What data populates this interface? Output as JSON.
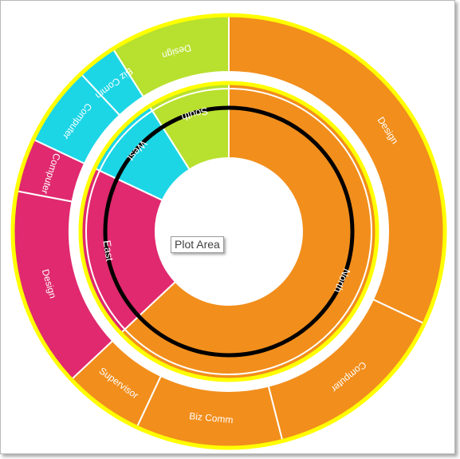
{
  "colors": {
    "North": "#f28e1c",
    "East": "#e0296e",
    "West": "#1cd6e6",
    "South": "#b8e02e",
    "ring_outline": "#ffff00",
    "inner_ring": "#000000"
  },
  "chart_data": {
    "type": "sunburst",
    "title": "",
    "series": [
      {
        "name": "North",
        "value": 0.63,
        "children": [
          {
            "name": "Design",
            "value": 0.32
          },
          {
            "name": "Computer",
            "value": 0.14
          },
          {
            "name": "Biz Comm",
            "value": 0.11
          },
          {
            "name": "Supervisor",
            "value": 0.06
          }
        ]
      },
      {
        "name": "East",
        "value": 0.19,
        "children": [
          {
            "name": "Design",
            "value": 0.15
          },
          {
            "name": "Computer",
            "value": 0.04
          }
        ]
      },
      {
        "name": "West",
        "value": 0.09,
        "children": [
          {
            "name": "Computer",
            "value": 0.06
          },
          {
            "name": "Biz Comm",
            "value": 0.03
          }
        ]
      },
      {
        "name": "South",
        "value": 0.09,
        "children": [
          {
            "name": "Design",
            "value": 0.09
          }
        ]
      }
    ]
  },
  "tooltip": {
    "label": "Plot Area"
  }
}
